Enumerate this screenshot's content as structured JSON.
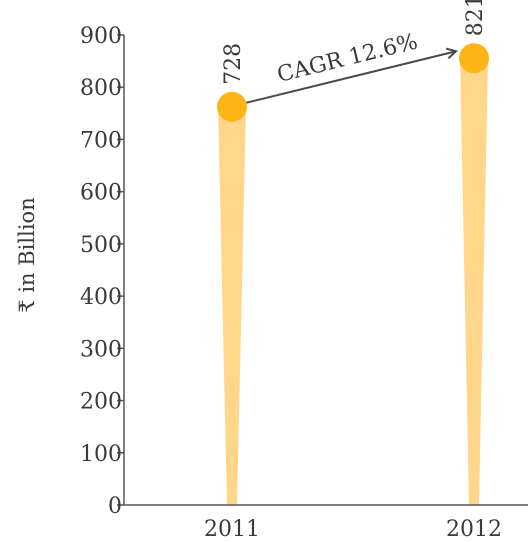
{
  "chart_data": {
    "type": "bar",
    "categories": [
      "2011",
      "2012"
    ],
    "values": [
      728,
      821
    ],
    "data_labels": [
      "728",
      "821"
    ],
    "ylabel": "₹ in Billion",
    "ylim": [
      0,
      900
    ],
    "yticks": [
      "0",
      "100",
      "200",
      "300",
      "400",
      "500",
      "600",
      "700",
      "800",
      "900"
    ],
    "annotation": "CAGR 12.6%",
    "grid": false,
    "colors": {
      "bar": "#FFD68A",
      "marker": "#FDB515",
      "axis": "#555555",
      "arrow": "#4a4a4a"
    }
  }
}
